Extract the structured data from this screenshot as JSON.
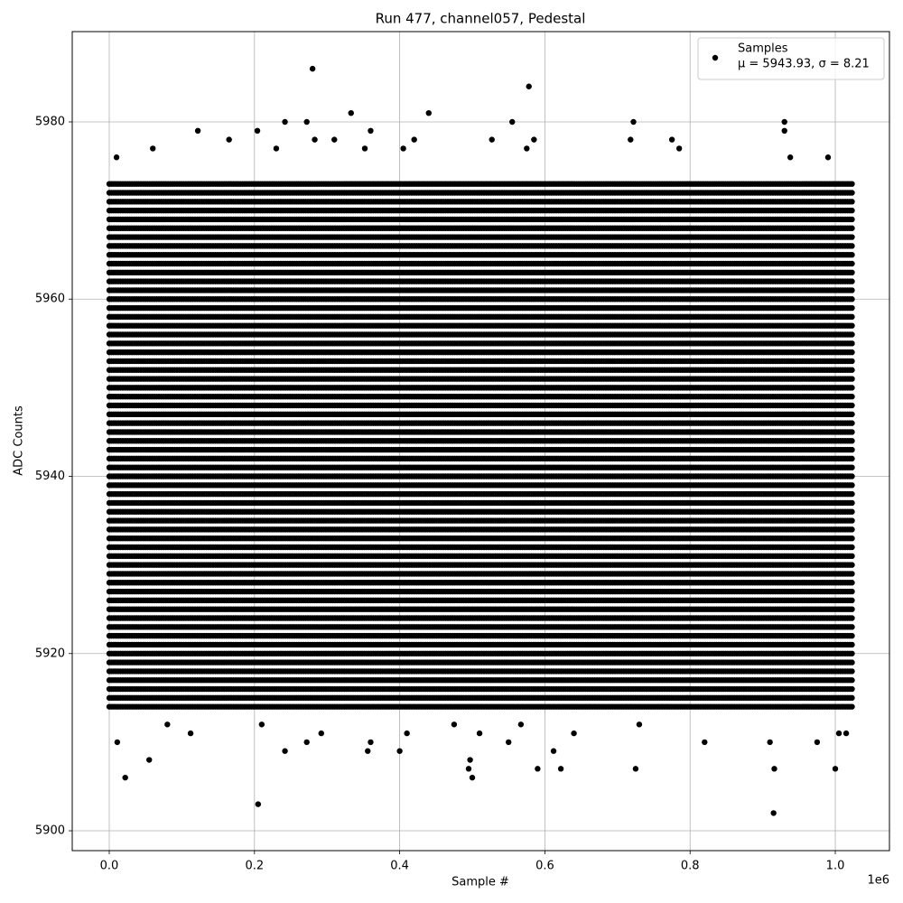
{
  "chart_data": {
    "type": "scatter",
    "title": "Run 477, channel057, Pedestal",
    "x_label": "Sample #",
    "y_label": "ADC Counts",
    "x_offset_label": "1e6",
    "xlim": [
      -51000,
      1074600
    ],
    "ylim": [
      5897.76,
      5990.19
    ],
    "xticks": [
      {
        "value": 0,
        "label": "0.0"
      },
      {
        "value": 200000,
        "label": "0.2"
      },
      {
        "value": 400000,
        "label": "0.4"
      },
      {
        "value": 600000,
        "label": "0.6"
      },
      {
        "value": 800000,
        "label": "0.8"
      },
      {
        "value": 1000000,
        "label": "1.0"
      }
    ],
    "yticks": [
      5900,
      5920,
      5940,
      5960,
      5980
    ],
    "grid": true,
    "legend": "upper right",
    "series": [
      {
        "name": "Samples",
        "stats_label": "μ = 5943.93, σ = 8.21",
        "color": "#000000",
        "x": [
          280000,
          578000,
          333000,
          440000,
          242000,
          272000,
          555000,
          722000,
          930000,
          930000,
          122000,
          204000,
          360000,
          165000,
          283000,
          310000,
          420000,
          527000,
          585000,
          718000,
          775000,
          60000,
          230000,
          352000,
          405000,
          575000,
          785000,
          10000,
          938000,
          990000,
          205000,
          915000,
          22000,
          500000,
          55000,
          497000,
          495000,
          590000,
          622000,
          725000,
          916000,
          1000000,
          242000,
          356000,
          400000,
          612000,
          11000,
          272000,
          360000,
          550000,
          820000,
          910000,
          975000,
          112000,
          292000,
          410000,
          510000,
          640000,
          1005000,
          1015000,
          80000,
          210000,
          475000,
          567000,
          730000
        ],
        "values": [
          5986,
          5984,
          5981,
          5981,
          5980,
          5980,
          5980,
          5980,
          5980,
          5979,
          5979,
          5979,
          5979,
          5978,
          5978,
          5978,
          5978,
          5978,
          5978,
          5978,
          5978,
          5977,
          5977,
          5977,
          5977,
          5977,
          5977,
          5976,
          5976,
          5976,
          5903,
          5902,
          5906,
          5906,
          5908,
          5908,
          5907,
          5907,
          5907,
          5907,
          5907,
          5907,
          5909,
          5909,
          5909,
          5909,
          5910,
          5910,
          5910,
          5910,
          5910,
          5910,
          5910,
          5911,
          5911,
          5911,
          5911,
          5911,
          5911,
          5911,
          5912,
          5912,
          5912,
          5912,
          5912
        ]
      }
    ],
    "dense_rows": {
      "x_range": [
        0,
        1024000
      ],
      "values": [
        5914,
        5915,
        5916,
        5917,
        5918,
        5919,
        5920,
        5921,
        5922,
        5923,
        5924,
        5925,
        5926,
        5927,
        5928,
        5929,
        5930,
        5931,
        5932,
        5933,
        5934,
        5935,
        5936,
        5937,
        5938,
        5939,
        5940,
        5941,
        5942,
        5943,
        5944,
        5945,
        5946,
        5947,
        5948,
        5949,
        5950,
        5951,
        5952,
        5953,
        5954,
        5955,
        5956,
        5957,
        5958,
        5959,
        5960,
        5961,
        5962,
        5963,
        5964,
        5965,
        5966,
        5967,
        5968,
        5969,
        5970,
        5971,
        5972,
        5973
      ]
    }
  }
}
